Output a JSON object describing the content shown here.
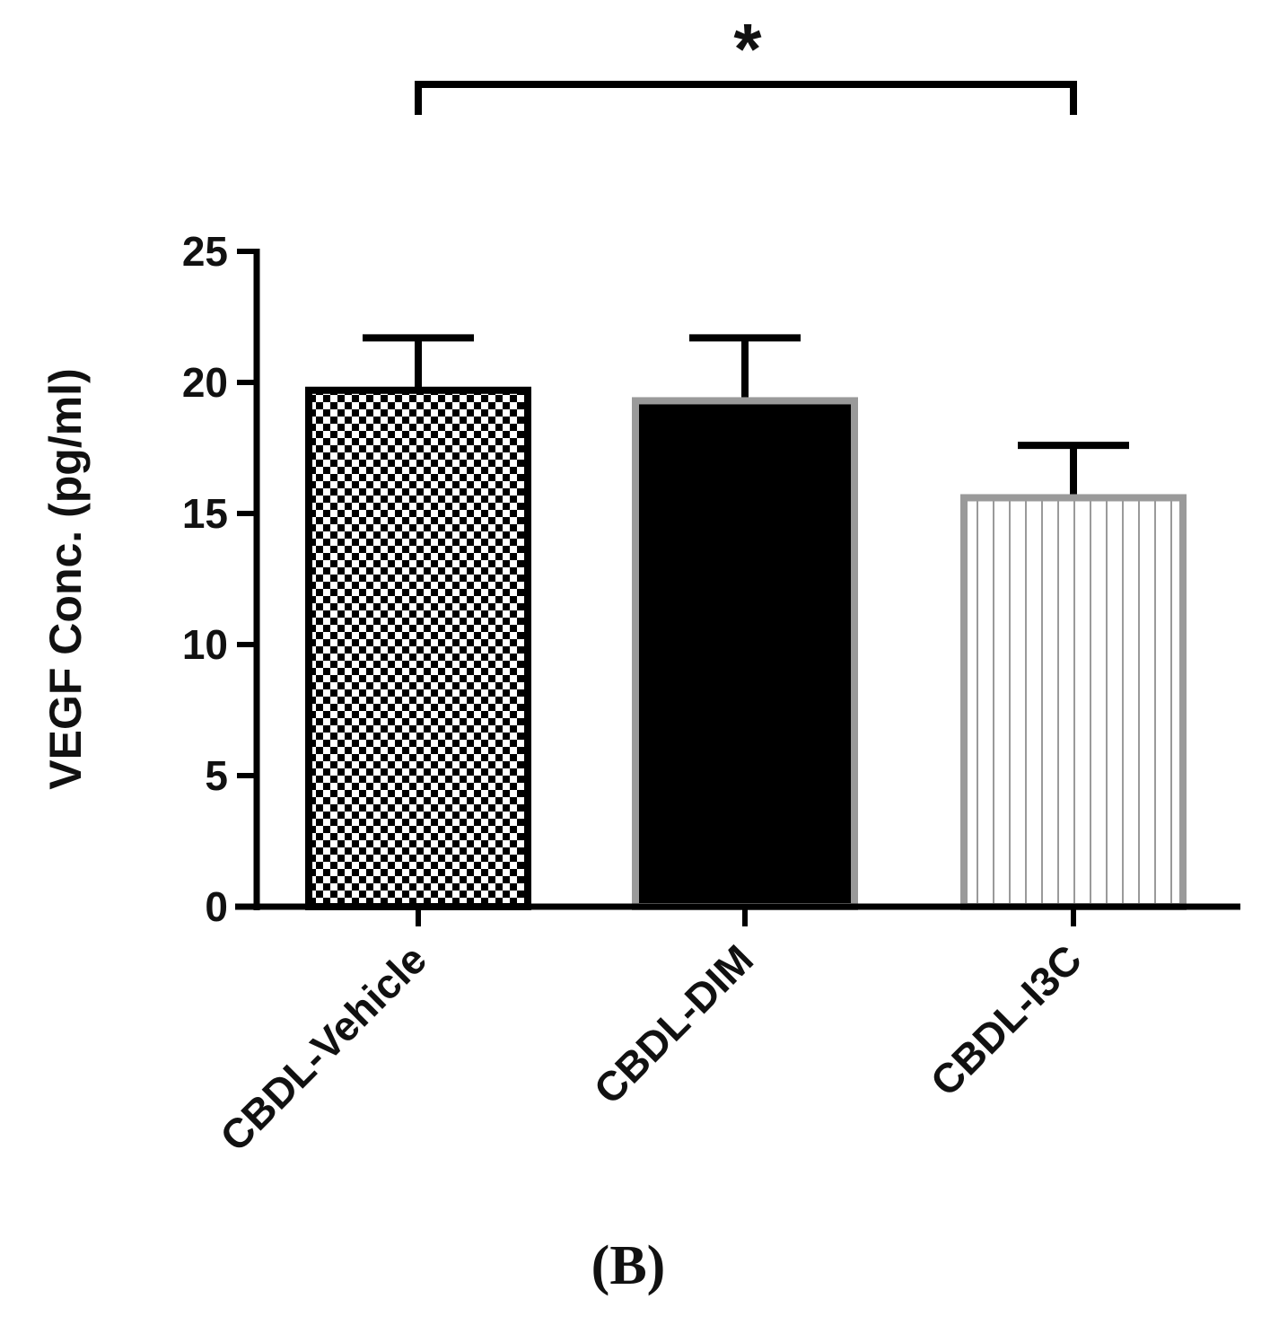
{
  "chart_data": {
    "type": "bar",
    "categories": [
      "CBDL-Vehicle",
      "CBDL-DIM",
      "CBDL-I3C"
    ],
    "values": [
      19.7,
      19.3,
      15.6
    ],
    "error_upper": [
      21.7,
      21.7,
      17.6
    ],
    "ylabel": "VEGF Conc. (pg/ml)",
    "xlabel": "",
    "ylim": [
      0,
      25
    ],
    "yticks": [
      0,
      5,
      10,
      15,
      20,
      25
    ],
    "grid": false,
    "bar_styles": [
      {
        "pattern": "checkerboard",
        "stroke": "#000000"
      },
      {
        "pattern": "solid-black",
        "stroke": "#9a9a9a"
      },
      {
        "pattern": "vertical-lines",
        "stroke": "#9a9a9a"
      }
    ],
    "significance": {
      "from": "CBDL-Vehicle",
      "to": "CBDL-I3C",
      "label": "*"
    }
  },
  "panel_label": "(B)"
}
